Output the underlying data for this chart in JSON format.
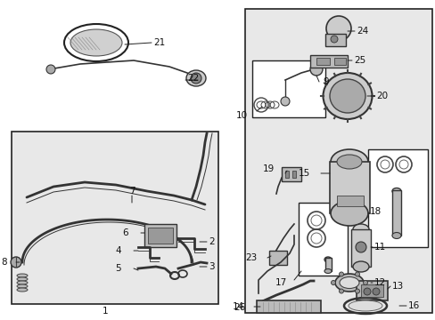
{
  "bg_color": "#ffffff",
  "fig_width": 4.89,
  "fig_height": 3.6,
  "dpi": 100,
  "image_b64": ""
}
